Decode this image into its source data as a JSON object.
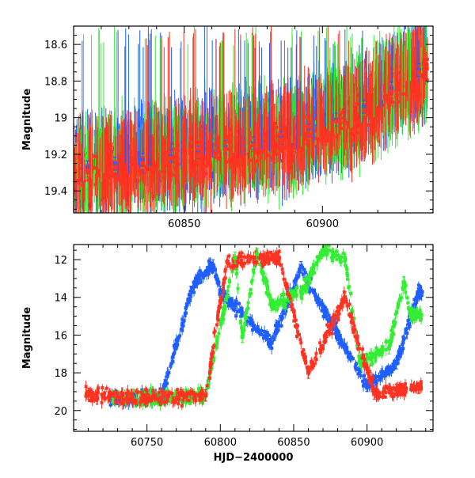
{
  "chart_data": [
    {
      "type": "scatter",
      "panel": "top",
      "title": "",
      "xlabel": "",
      "ylabel": "Magnitude",
      "xlim": [
        60810,
        60940
      ],
      "ylim": [
        19.52,
        18.5
      ],
      "y_inverted": true,
      "xticks": [
        60850,
        60900
      ],
      "xtick_labels": [
        "60850",
        "60900"
      ],
      "yticks": [
        18.6,
        18.8,
        19.0,
        19.2,
        19.4
      ],
      "ytick_labels": [
        "18.6",
        "18.8",
        "19",
        "19.2",
        "19.4"
      ],
      "grid": false,
      "legend": "none",
      "series": [
        {
          "color": "#33ee33",
          "x": [
            60815,
            60825,
            60835,
            60845,
            60855,
            60865,
            60875,
            60885,
            60895,
            60905,
            60915,
            60925,
            60935
          ],
          "y": [
            19.28,
            19.26,
            19.24,
            19.22,
            19.2,
            19.16,
            19.15,
            19.12,
            19.08,
            19.02,
            18.95,
            18.85,
            18.75
          ]
        },
        {
          "color": "#1f5fff",
          "x": [
            60815,
            60825,
            60835,
            60845,
            60855,
            60865,
            60875,
            60885,
            60895,
            60905,
            60915,
            60925,
            60935
          ],
          "y": [
            19.27,
            19.25,
            19.23,
            19.21,
            19.19,
            19.16,
            19.14,
            19.11,
            19.07,
            19.01,
            18.94,
            18.84,
            18.74
          ]
        },
        {
          "color": "#ff3322",
          "x": [
            60815,
            60825,
            60835,
            60845,
            60855,
            60865,
            60875,
            60885,
            60895,
            60905,
            60915,
            60925,
            60935
          ],
          "y": [
            19.29,
            19.27,
            19.25,
            19.22,
            19.2,
            19.17,
            19.15,
            19.12,
            19.08,
            19.02,
            18.96,
            18.86,
            18.75
          ]
        }
      ]
    },
    {
      "type": "scatter",
      "panel": "bottom",
      "title": "",
      "xlabel": "HJD−2400000",
      "ylabel": "Magnitude",
      "xlim": [
        60700,
        60945
      ],
      "ylim": [
        21.1,
        11.2
      ],
      "y_inverted": true,
      "xticks": [
        60750,
        60800,
        60850,
        60900
      ],
      "xtick_labels": [
        "60750",
        "60800",
        "60850",
        "60900"
      ],
      "yticks": [
        12,
        14,
        16,
        18,
        20
      ],
      "ytick_labels": [
        "12",
        "14",
        "16",
        "18",
        "20"
      ],
      "grid": false,
      "legend": "none",
      "series": [
        {
          "color": "#33ee33",
          "x": [
            60730,
            60760,
            60790,
            60810,
            60815,
            60825,
            60835,
            60855,
            60870,
            60885,
            60895,
            60915,
            60925,
            60930
          ],
          "y": [
            19.4,
            19.3,
            19.2,
            11.9,
            16.1,
            11.7,
            14.4,
            13.7,
            11.5,
            12.0,
            17.4,
            16.7,
            13.2,
            15.0
          ]
        },
        {
          "color": "#1f5fff",
          "x": [
            60730,
            60760,
            60780,
            60785,
            60795,
            60800,
            60835,
            60855,
            60880,
            60900,
            60920,
            60935
          ],
          "y": [
            19.4,
            19.3,
            13.7,
            13.0,
            12.3,
            13.7,
            16.4,
            12.4,
            16.0,
            18.7,
            17.5,
            13.8
          ]
        },
        {
          "color": "#ff3322",
          "x": [
            60710,
            60730,
            60760,
            60790,
            60800,
            60805,
            60840,
            60860,
            60885,
            60905,
            60920,
            60935
          ],
          "y": [
            19.1,
            19.3,
            19.3,
            19.2,
            14.2,
            12.1,
            11.9,
            18.0,
            14.0,
            19.1,
            18.9,
            18.8
          ]
        }
      ]
    }
  ]
}
